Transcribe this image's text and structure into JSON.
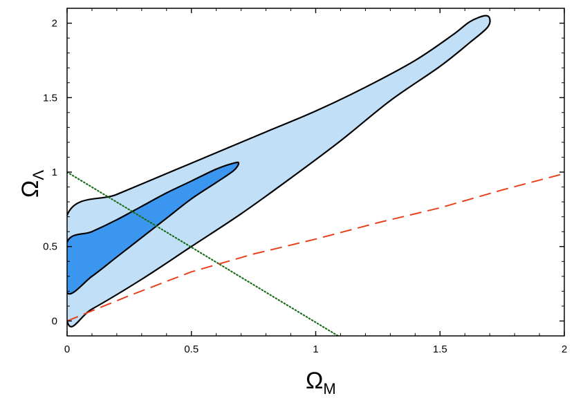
{
  "chart_data": {
    "type": "contour",
    "xlabel": {
      "symbol": "Ω",
      "subscript": "M"
    },
    "ylabel": {
      "symbol": "Ω",
      "subscript": "Λ"
    },
    "xlim": [
      0,
      2
    ],
    "ylim": [
      -0.1,
      2.1
    ],
    "x_ticks": [
      {
        "value": 0,
        "label": "0"
      },
      {
        "value": 0.5,
        "label": "0.5"
      },
      {
        "value": 1,
        "label": "1"
      },
      {
        "value": 1.5,
        "label": "1.5"
      },
      {
        "value": 2,
        "label": "2"
      }
    ],
    "y_ticks": [
      {
        "value": 0,
        "label": "0"
      },
      {
        "value": 0.5,
        "label": "0.5"
      },
      {
        "value": 1,
        "label": "1"
      },
      {
        "value": 1.5,
        "label": "1.5"
      },
      {
        "value": 2,
        "label": "2"
      }
    ],
    "grid": false,
    "legend": "none",
    "contours": [
      {
        "level": "outer",
        "fill": "#c2dff8",
        "stroke": "#000000",
        "points": [
          [
            0,
            0.71
          ],
          [
            0.2,
            0.85
          ],
          [
            0.4,
            0.99
          ],
          [
            0.6,
            1.13
          ],
          [
            0.8,
            1.27
          ],
          [
            1.0,
            1.41
          ],
          [
            1.2,
            1.57
          ],
          [
            1.4,
            1.75
          ],
          [
            1.55,
            1.92
          ],
          [
            1.62,
            2.01
          ],
          [
            1.68,
            2.05
          ],
          [
            1.7,
            2.03
          ],
          [
            1.69,
            1.97
          ],
          [
            1.62,
            1.87
          ],
          [
            1.5,
            1.71
          ],
          [
            1.3,
            1.48
          ],
          [
            1.1,
            1.21
          ],
          [
            0.9,
            0.96
          ],
          [
            0.7,
            0.72
          ],
          [
            0.5,
            0.5
          ],
          [
            0.3,
            0.28
          ],
          [
            0.1,
            0.08
          ],
          [
            0,
            0
          ]
        ]
      },
      {
        "level": "inner",
        "fill": "#3b96ef",
        "stroke": "#000000",
        "points": [
          [
            0,
            0.53
          ],
          [
            0.1,
            0.6
          ],
          [
            0.2,
            0.68
          ],
          [
            0.3,
            0.77
          ],
          [
            0.4,
            0.86
          ],
          [
            0.5,
            0.94
          ],
          [
            0.6,
            1.02
          ],
          [
            0.67,
            1.06
          ],
          [
            0.69,
            1.06
          ],
          [
            0.67,
            1.01
          ],
          [
            0.6,
            0.93
          ],
          [
            0.5,
            0.82
          ],
          [
            0.4,
            0.69
          ],
          [
            0.3,
            0.56
          ],
          [
            0.2,
            0.43
          ],
          [
            0.1,
            0.3
          ],
          [
            0,
            0.19
          ]
        ]
      }
    ],
    "lines": [
      {
        "style": "dotted",
        "color": "#1a6e1a",
        "points": [
          [
            0,
            1
          ],
          [
            1.09,
            -0.1
          ]
        ]
      },
      {
        "style": "dashed",
        "color": "#e8401c",
        "points": [
          [
            0,
            0
          ],
          [
            0.25,
            0.17
          ],
          [
            0.5,
            0.33
          ],
          [
            0.75,
            0.45
          ],
          [
            1,
            0.55
          ],
          [
            1.25,
            0.66
          ],
          [
            1.5,
            0.76
          ],
          [
            1.75,
            0.88
          ],
          [
            2,
            0.99
          ]
        ]
      }
    ]
  }
}
